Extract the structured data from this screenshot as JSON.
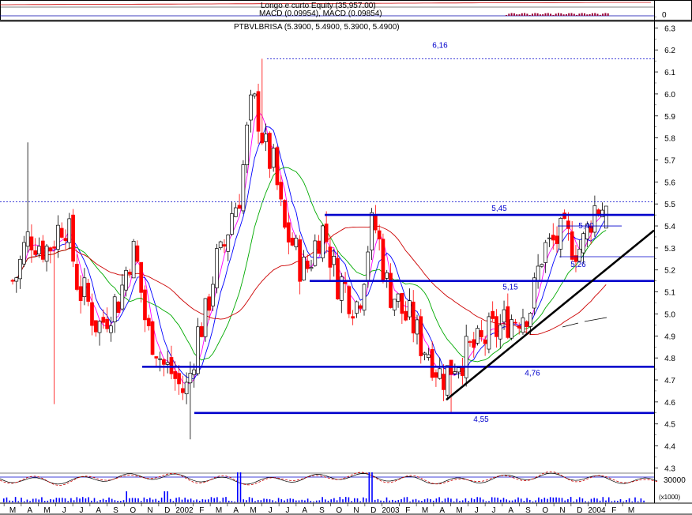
{
  "indicator_panel": {
    "line1": "Longo e curto Equity (35,957.00)",
    "line2": "MACD (0.09954), MACD (0.09854)",
    "zero_label": "0"
  },
  "price_header": "PTBVLBRISA (5.3900, 5.4900, 5.3900, 5.4900)",
  "volume_panel": {
    "tick_label": "30000",
    "multiplier_label": "(x1000)"
  },
  "colors": {
    "up_candle_fill": "#ffffff",
    "down_candle_fill": "#ff0000",
    "support_resistance": "#0000cc",
    "trendline": "#000000",
    "ma_short": "#0000ff",
    "ma_mid": "#ff00ff",
    "ma_long": "#00aa00",
    "ma_longest": "#cc0000",
    "volume_bar": "#0000ff"
  },
  "chart_data": {
    "type": "candlestick",
    "title": "PTBVLBRISA (5.3900, 5.4900, 5.3900, 5.4900)",
    "y_ticks": [
      4.3,
      4.4,
      4.5,
      4.6,
      4.7,
      4.8,
      4.9,
      5.0,
      5.1,
      5.2,
      5.3,
      5.4,
      5.5,
      5.6,
      5.7,
      5.8,
      5.9,
      6.0,
      6.1,
      6.2,
      6.3
    ],
    "ylim": [
      4.28,
      6.33
    ],
    "x_labels": [
      "M",
      "A",
      "M",
      "J",
      "J",
      "A",
      "S",
      "O",
      "N",
      "D",
      "2002",
      "F",
      "M",
      "A",
      "M",
      "J",
      "J",
      "A",
      "S",
      "O",
      "N",
      "D",
      "2003",
      "F",
      "M",
      "A",
      "M",
      "J",
      "J",
      "A",
      "S",
      "O",
      "N",
      "D",
      "2004",
      "F",
      "M"
    ],
    "horizontal_levels": [
      {
        "label": "6,16",
        "value": 6.16,
        "style": "dotted"
      },
      {
        "label": "",
        "value": 5.51,
        "style": "dotted"
      },
      {
        "label": "5,45",
        "value": 5.45,
        "style": "solid"
      },
      {
        "label": "5,40",
        "value": 5.4,
        "style": "thin"
      },
      {
        "label": "5,26",
        "value": 5.26,
        "style": "thin"
      },
      {
        "label": "5,15",
        "value": 5.15,
        "style": "solid"
      },
      {
        "label": "4,76",
        "value": 4.76,
        "style": "solid"
      },
      {
        "label": "4,55",
        "value": 4.55,
        "style": "solid"
      }
    ],
    "trendline": {
      "start": [
        "2003-04",
        4.61
      ],
      "end": [
        "2004-03",
        5.38
      ]
    },
    "price_control_points": [
      [
        "2001-03",
        5.15
      ],
      [
        "2001-04",
        5.35
      ],
      [
        "2001-05",
        5.3
      ],
      [
        "2001-06",
        5.42
      ],
      [
        "2001-07",
        5.1
      ],
      [
        "2001-08",
        4.95
      ],
      [
        "2001-09",
        5.05
      ],
      [
        "2001-10",
        5.28
      ],
      [
        "2001-11",
        4.9
      ],
      [
        "2001-12",
        4.75
      ],
      [
        "2002-01",
        4.65
      ],
      [
        "2002-02",
        4.95
      ],
      [
        "2002-03",
        5.25
      ],
      [
        "2002-04",
        5.5
      ],
      [
        "2002-05",
        5.95
      ],
      [
        "2002-06",
        5.7
      ],
      [
        "2002-07",
        5.35
      ],
      [
        "2002-08",
        5.2
      ],
      [
        "2002-09",
        5.38
      ],
      [
        "2002-10",
        5.15
      ],
      [
        "2002-11",
        5.05
      ],
      [
        "2002-12",
        5.4
      ],
      [
        "2003-01",
        5.1
      ],
      [
        "2003-02",
        4.98
      ],
      [
        "2003-03",
        4.85
      ],
      [
        "2003-04",
        4.72
      ],
      [
        "2003-05",
        4.8
      ],
      [
        "2003-06",
        4.85
      ],
      [
        "2003-07",
        4.92
      ],
      [
        "2003-08",
        4.98
      ],
      [
        "2003-09",
        5.02
      ],
      [
        "2003-10",
        5.3
      ],
      [
        "2003-11",
        5.35
      ],
      [
        "2003-12",
        5.3
      ],
      [
        "2004-01",
        5.49
      ]
    ]
  }
}
